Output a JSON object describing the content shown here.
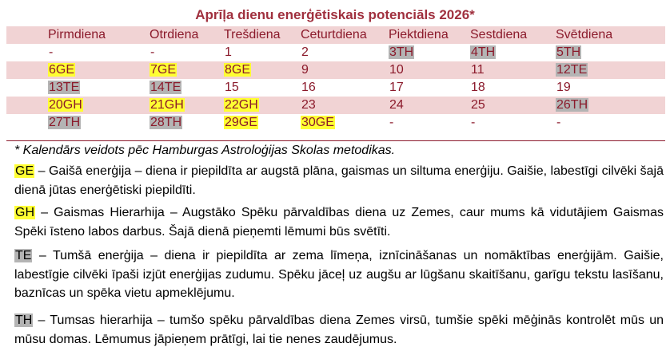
{
  "title": "Aprīļa dienu enerģētiskais potenciāls 2026*",
  "weekdays": [
    "Pirmdiena",
    "Otrdiena",
    "Trešdiena",
    "Ceturtdiena",
    "Piektdiena",
    "Sestdiena",
    "Svētdiena"
  ],
  "rows": [
    [
      {
        "t": "-",
        "h": ""
      },
      {
        "t": "-",
        "h": ""
      },
      {
        "t": "1",
        "h": ""
      },
      {
        "t": "2",
        "h": ""
      },
      {
        "t": "3TH",
        "h": "gray"
      },
      {
        "t": "4TH",
        "h": "gray"
      },
      {
        "t": "5TH",
        "h": "gray"
      }
    ],
    [
      {
        "t": "6GE",
        "h": "yellow"
      },
      {
        "t": "7GE",
        "h": "yellow"
      },
      {
        "t": "8GE",
        "h": "yellow"
      },
      {
        "t": "9",
        "h": ""
      },
      {
        "t": "10",
        "h": ""
      },
      {
        "t": "11",
        "h": ""
      },
      {
        "t": "12TE",
        "h": "gray"
      }
    ],
    [
      {
        "t": "13TE",
        "h": "gray"
      },
      {
        "t": "14TE",
        "h": "gray"
      },
      {
        "t": "15",
        "h": ""
      },
      {
        "t": "16",
        "h": ""
      },
      {
        "t": "17",
        "h": ""
      },
      {
        "t": "18",
        "h": ""
      },
      {
        "t": "19",
        "h": ""
      }
    ],
    [
      {
        "t": "20GH",
        "h": "yellow"
      },
      {
        "t": "21GH",
        "h": "yellow"
      },
      {
        "t": "22GH",
        "h": "yellow"
      },
      {
        "t": "23",
        "h": ""
      },
      {
        "t": "24",
        "h": ""
      },
      {
        "t": "25",
        "h": ""
      },
      {
        "t": "26TH",
        "h": "gray"
      }
    ],
    [
      {
        "t": "27TH",
        "h": "gray"
      },
      {
        "t": "28TH",
        "h": "gray"
      },
      {
        "t": "29GE",
        "h": "yellow"
      },
      {
        "t": "30GE",
        "h": "yellow"
      },
      {
        "t": "-",
        "h": ""
      },
      {
        "t": "-",
        "h": ""
      },
      {
        "t": "-",
        "h": ""
      }
    ]
  ],
  "note": "* Kalendārs veidots pēc Hamburgas Astroloģijas Skolas metodikas.",
  "legend": {
    "ge_code": "GE",
    "ge_text": " – Gaišā enerģija – diena ir piepildīta ar augstā plāna, gaismas un siltuma enerģiju. Gaišie, labestīgi cilvēki šajā dienā jūtas enerģētiski piepildīti.",
    "gh_code": "GH",
    "gh_text": " – Gaismas Hierarhija – Augstāko Spēku pārvaldības diena uz Zemes, caur mums kā vidutājiem Gaismas Spēki īsteno labos darbus. Šajā dienā pieņemti lēmumi būs svētīti.",
    "te_code": "TE",
    "te_text": " – Tumšā enerģija – diena ir piepildīta ar zema līmeņa, iznīcināšanas un nomāktības enerģijām. Gaišie, labestīgie cilvēki īpaši izjūt enerģijas zudumu. Spēku jāceļ uz augšu ar lūgšanu skaitīšanu, garīgu tekstu lasīšanu, baznīcas un spēka vietu apmeklējumu.",
    "th_code": "TH",
    "th_text": " – Tumsas hierarhija – tumšo spēku pārvaldības diena Zemes virsū, tumšie spēki mēģinās kontrolēt mūs un mūsu domas. Lēmumus jāpieņem prātīgi, lai tie nenes zaudējumus."
  },
  "colors": {
    "yellow": "#ffff33",
    "gray": "#b4b4b4",
    "pink": "#f1d3d4",
    "text": "#8b1a2b"
  }
}
